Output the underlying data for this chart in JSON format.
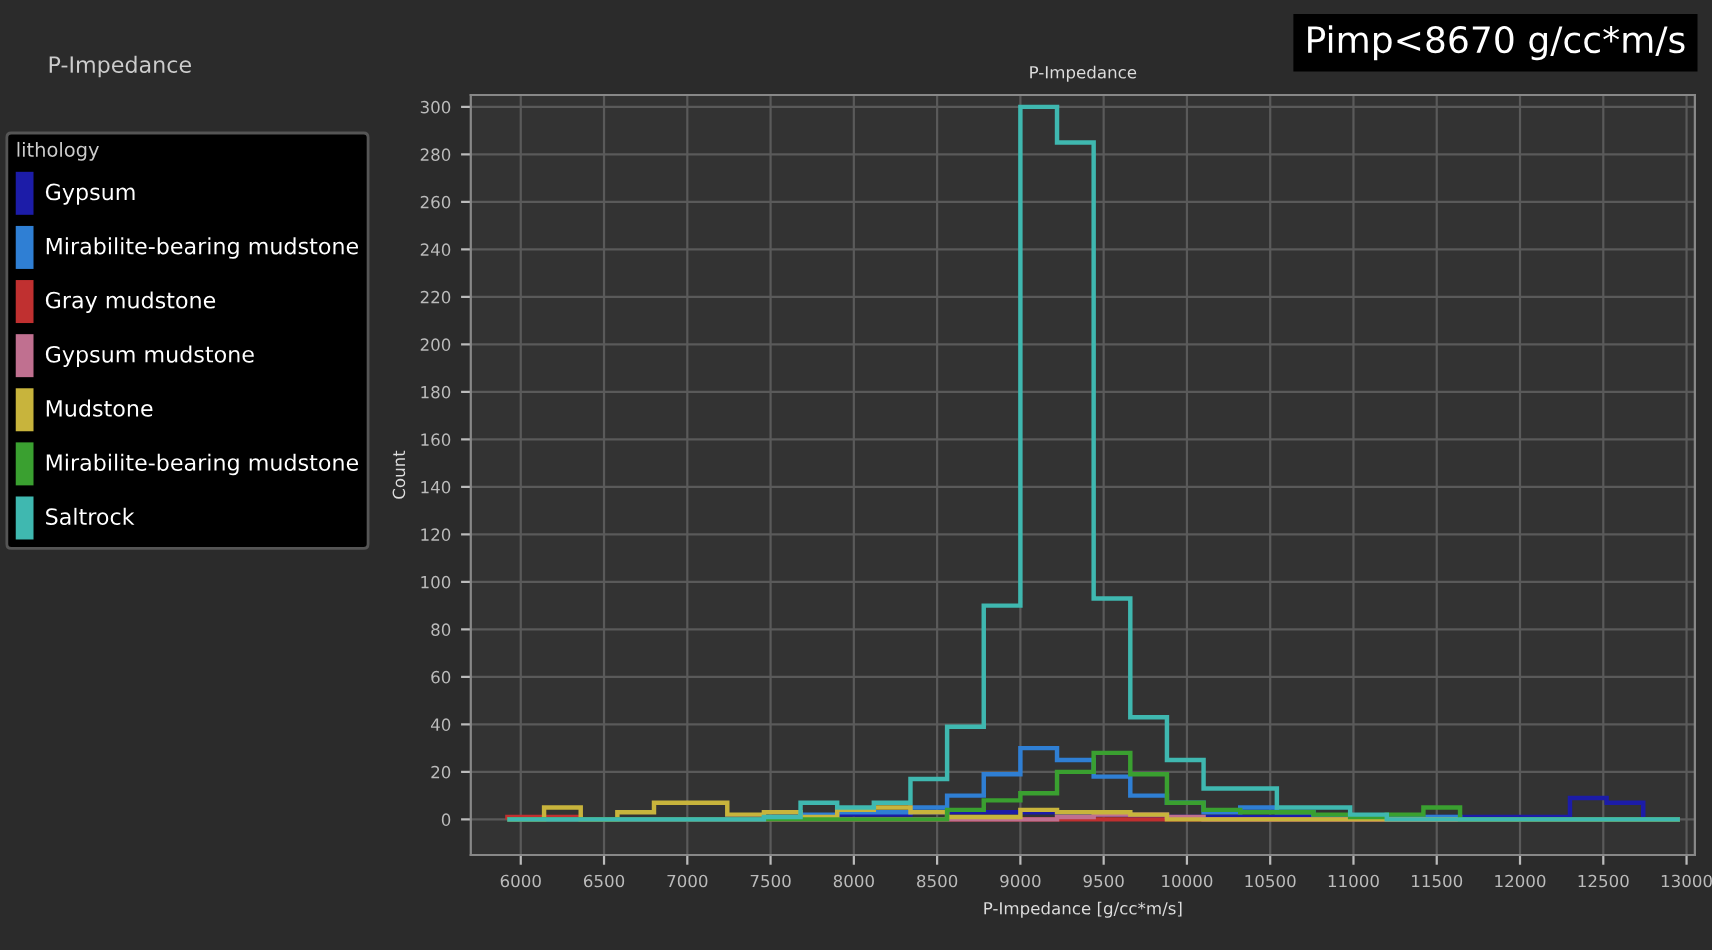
{
  "chart_data": {
    "type": "histogram",
    "title": "P-Impedance",
    "xlabel": "P-Impedance [g/cc*m/s]",
    "ylabel": "Count",
    "legend_title": "lithology",
    "annotations": [
      "P-Impedance",
      "Pimp<8670 g/cc*m/s"
    ],
    "bins": [
      5920,
      6140,
      6360,
      6580,
      6800,
      7020,
      7240,
      7460,
      7680,
      7900,
      8120,
      8340,
      8560,
      8780,
      9000,
      9220,
      9440,
      9660,
      9880,
      10100,
      10320,
      10540,
      10760,
      10980,
      11200,
      11420,
      11640,
      11860,
      12080,
      12300,
      12520,
      12740,
      12960
    ],
    "series": [
      {
        "name": "Gypsum",
        "color": "#1c1ca8",
        "values": [
          0,
          0,
          0,
          0,
          0,
          0,
          1,
          1,
          1,
          2,
          2,
          3,
          3,
          3,
          3,
          2,
          2,
          1,
          1,
          1,
          1,
          1,
          1,
          1,
          1,
          1,
          1,
          1,
          1,
          9,
          7,
          0
        ]
      },
      {
        "name": "Mirabilite-bearing mudstone",
        "color": "#2f7fd4",
        "values": [
          0,
          0,
          0,
          0,
          0,
          0,
          0,
          1,
          2,
          3,
          3,
          5,
          10,
          19,
          30,
          25,
          18,
          10,
          7,
          3,
          5,
          3,
          1,
          1,
          1,
          1,
          0,
          0,
          0,
          0,
          0,
          0
        ]
      },
      {
        "name": "Gray mudstone",
        "color": "#c03030",
        "values": [
          1,
          1,
          0,
          0,
          0,
          0,
          0,
          0,
          0,
          0,
          0,
          0,
          0,
          0,
          0,
          0,
          0,
          0,
          0,
          0,
          0,
          0,
          0,
          0,
          0,
          0,
          0,
          0,
          0,
          0,
          0,
          0
        ]
      },
      {
        "name": "Gypsum mudstone",
        "color": "#c07090",
        "values": [
          0,
          0,
          0,
          0,
          0,
          0,
          0,
          0,
          0,
          0,
          0,
          0,
          0,
          0,
          0,
          1,
          2,
          2,
          1,
          0,
          0,
          0,
          0,
          0,
          0,
          0,
          0,
          0,
          0,
          0,
          0,
          0
        ]
      },
      {
        "name": "Mudstone",
        "color": "#c8b43c",
        "values": [
          0,
          5,
          0,
          3,
          7,
          7,
          2,
          3,
          1,
          4,
          5,
          3,
          1,
          1,
          4,
          3,
          3,
          2,
          0,
          0,
          0,
          0,
          0,
          0,
          0,
          0,
          0,
          0,
          0,
          0,
          0,
          0
        ]
      },
      {
        "name": "Mirabilite-bearing mudstone",
        "color": "#3aa030",
        "values": [
          0,
          0,
          0,
          0,
          0,
          0,
          0,
          0,
          0,
          0,
          0,
          0,
          4,
          8,
          11,
          20,
          28,
          19,
          7,
          4,
          3,
          3,
          2,
          1,
          2,
          5,
          0,
          0,
          0,
          0,
          0,
          0
        ]
      },
      {
        "name": "Saltrock",
        "color": "#3fb8b0",
        "values": [
          0,
          0,
          0,
          0,
          0,
          0,
          0,
          1,
          7,
          5,
          7,
          17,
          39,
          90,
          300,
          285,
          93,
          43,
          25,
          13,
          13,
          5,
          5,
          2,
          0,
          0,
          0,
          0,
          0,
          0,
          0,
          0
        ]
      }
    ],
    "xlim": [
      5700,
      13050
    ],
    "ylim": [
      -15,
      305
    ],
    "xticks": [
      6000,
      6500,
      7000,
      7500,
      8000,
      8500,
      9000,
      9500,
      10000,
      10500,
      11000,
      11500,
      12000,
      12500,
      13000
    ],
    "yticks": [
      0,
      20,
      40,
      60,
      80,
      100,
      120,
      140,
      160,
      180,
      200,
      220,
      240,
      260,
      280,
      300
    ],
    "grid": true,
    "legend": "left"
  }
}
